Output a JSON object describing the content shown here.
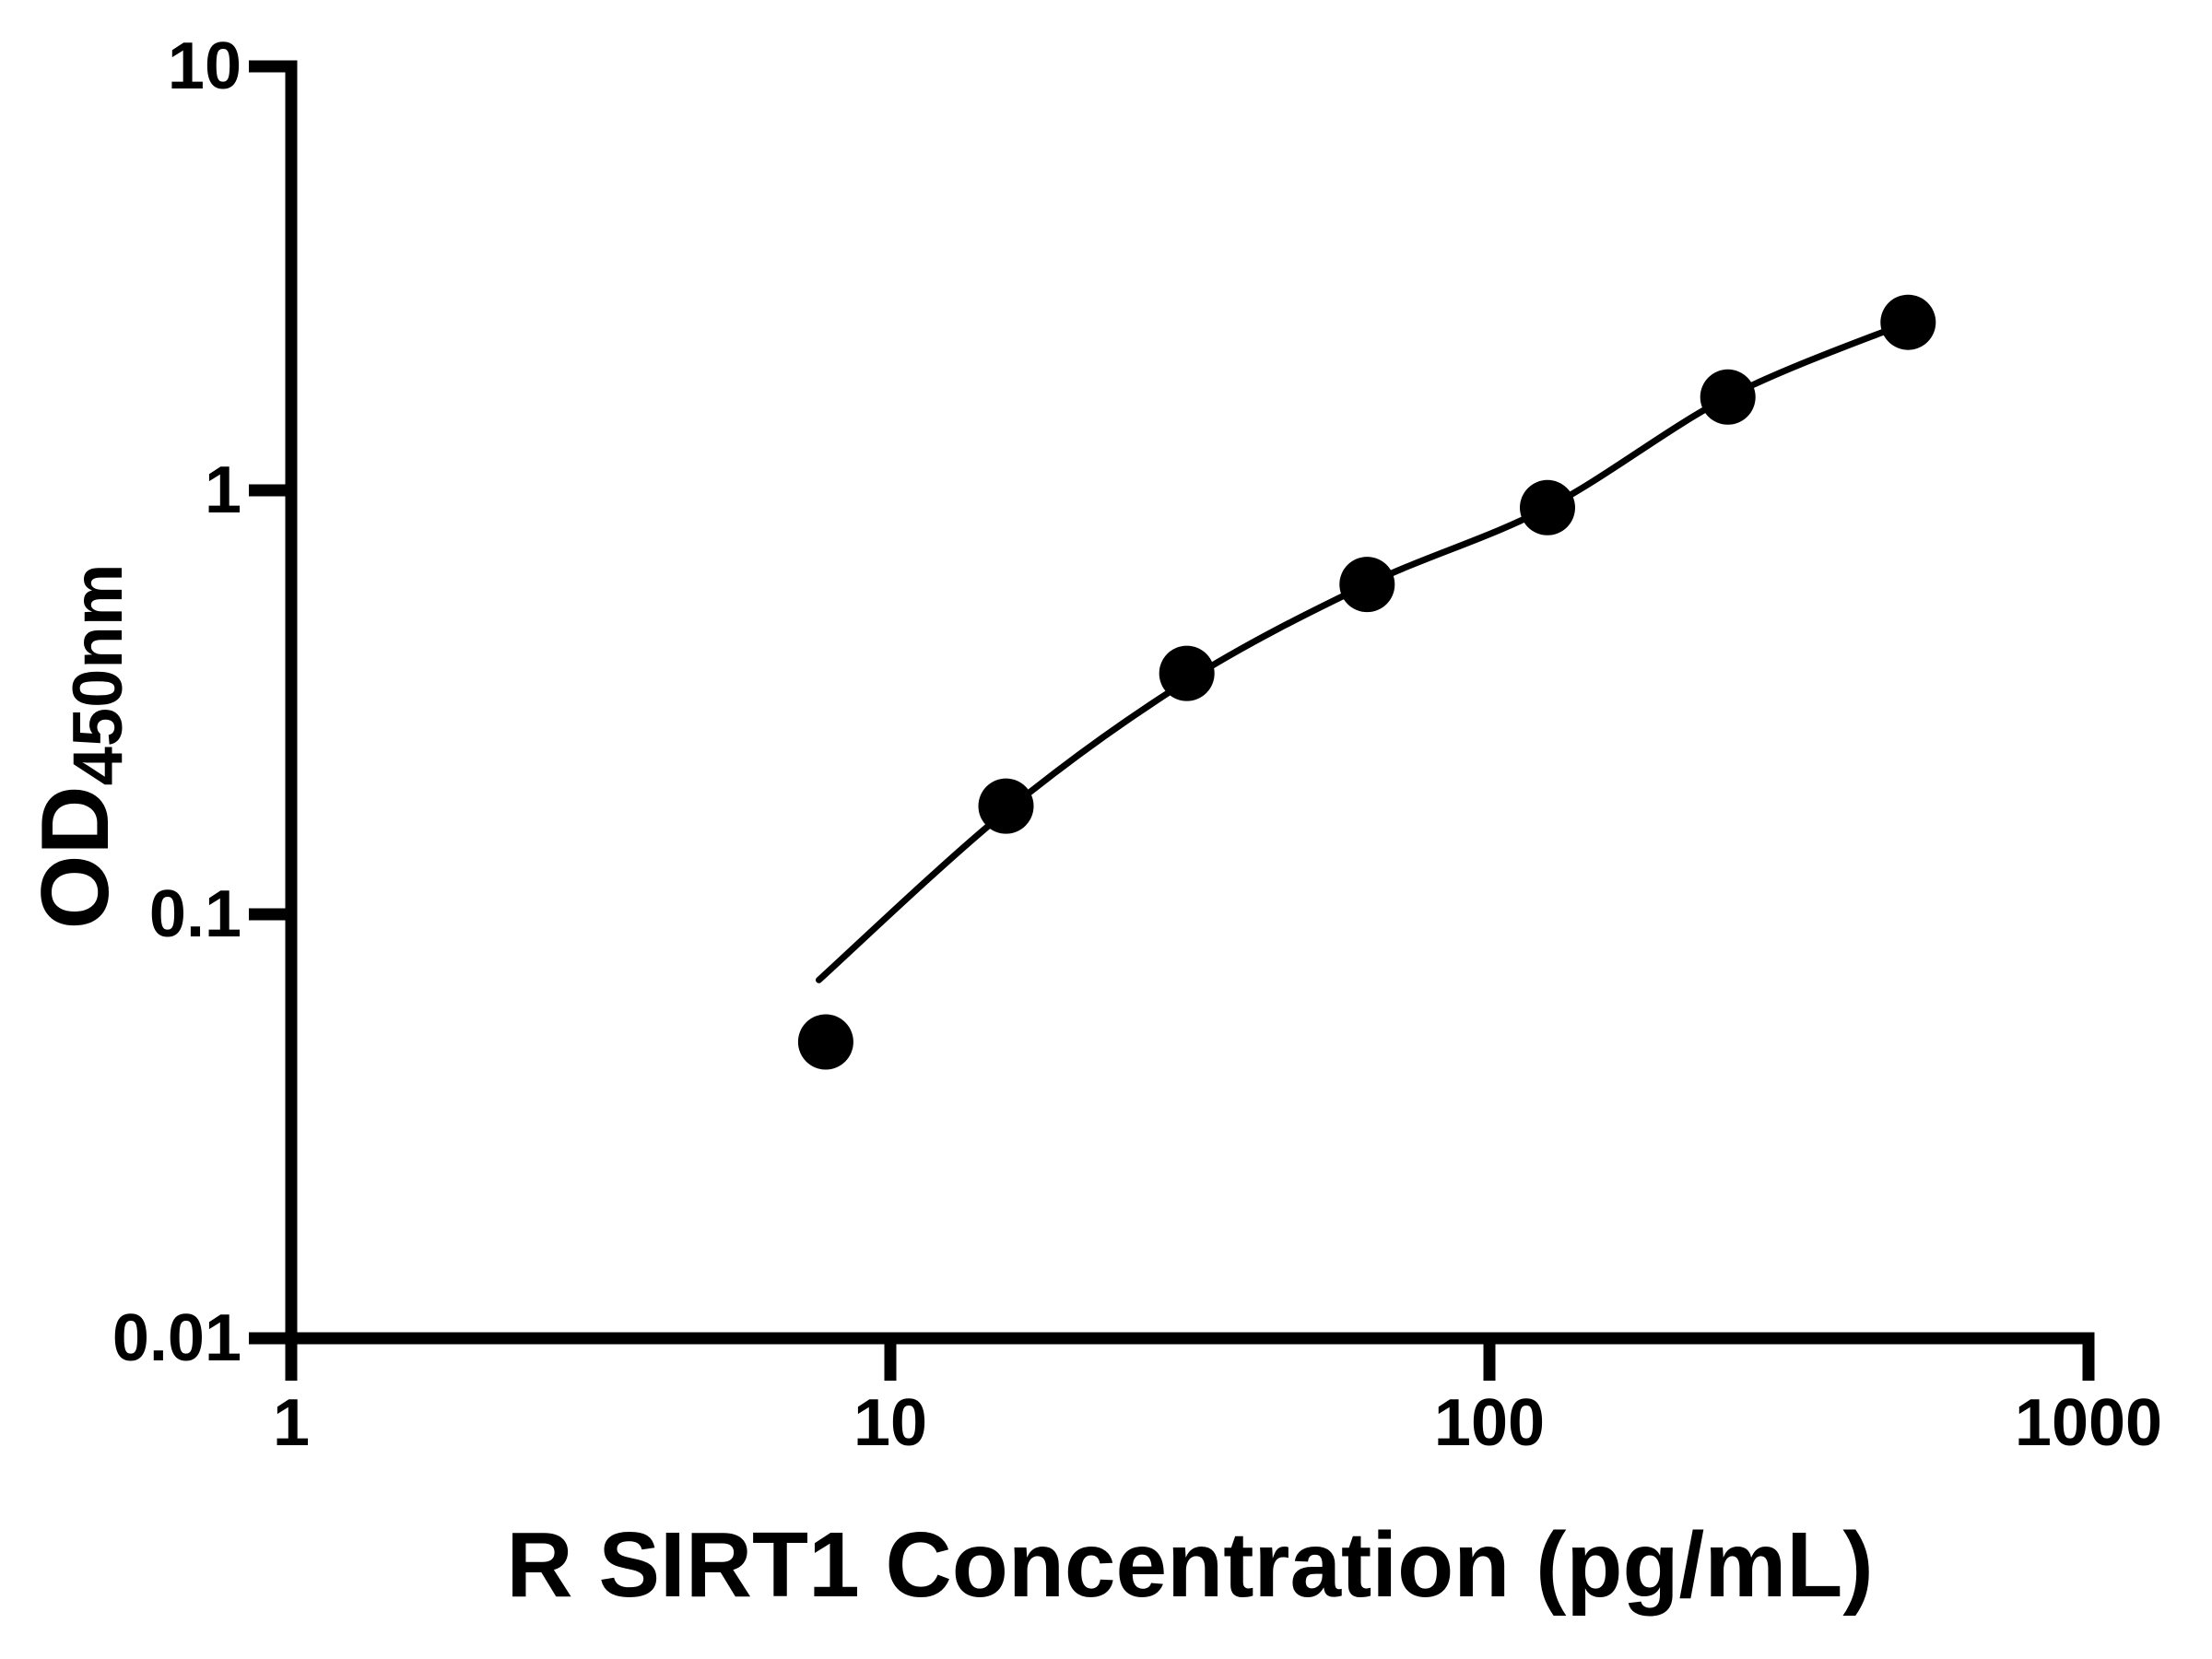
{
  "chart_data": {
    "type": "scatter",
    "title": "",
    "xlabel": "R SIRT1 Concentration (pg/mL)",
    "ylabel": "OD450nm",
    "ylabel_main": "OD",
    "ylabel_sub": "450nm",
    "x_scale": "log10",
    "y_scale": "log10",
    "xlim": [
      1,
      1000
    ],
    "ylim": [
      0.01,
      10
    ],
    "x_ticks": [
      {
        "value": 1,
        "label": "1"
      },
      {
        "value": 10,
        "label": "10"
      },
      {
        "value": 100,
        "label": "100"
      },
      {
        "value": 1000,
        "label": "1000"
      }
    ],
    "y_ticks": [
      {
        "value": 10,
        "label": "10"
      },
      {
        "value": 1,
        "label": "1"
      },
      {
        "value": 0.1,
        "label": "0.1"
      },
      {
        "value": 0.01,
        "label": "0.01"
      }
    ],
    "grid": false,
    "legend": "none",
    "background_color": "#ffffff",
    "foreground_color": "#000000",
    "series": [
      {
        "name": "standard-points",
        "type": "scatter",
        "marker": "filled-circle",
        "color": "#000000",
        "points": [
          {
            "x": 7.8,
            "y": 0.05
          },
          {
            "x": 15.6,
            "y": 0.18
          },
          {
            "x": 31.25,
            "y": 0.37
          },
          {
            "x": 62.5,
            "y": 0.6
          },
          {
            "x": 125,
            "y": 0.91
          },
          {
            "x": 250,
            "y": 1.66
          },
          {
            "x": 500,
            "y": 2.49
          }
        ]
      },
      {
        "name": "fit-curve",
        "type": "line",
        "color": "#000000",
        "points": [
          {
            "x": 7.6,
            "y": 0.07
          },
          {
            "x": 15.6,
            "y": 0.175
          },
          {
            "x": 31.25,
            "y": 0.355
          },
          {
            "x": 62.5,
            "y": 0.6
          },
          {
            "x": 125,
            "y": 0.91
          },
          {
            "x": 250,
            "y": 1.66
          },
          {
            "x": 500,
            "y": 2.49
          }
        ]
      }
    ]
  }
}
